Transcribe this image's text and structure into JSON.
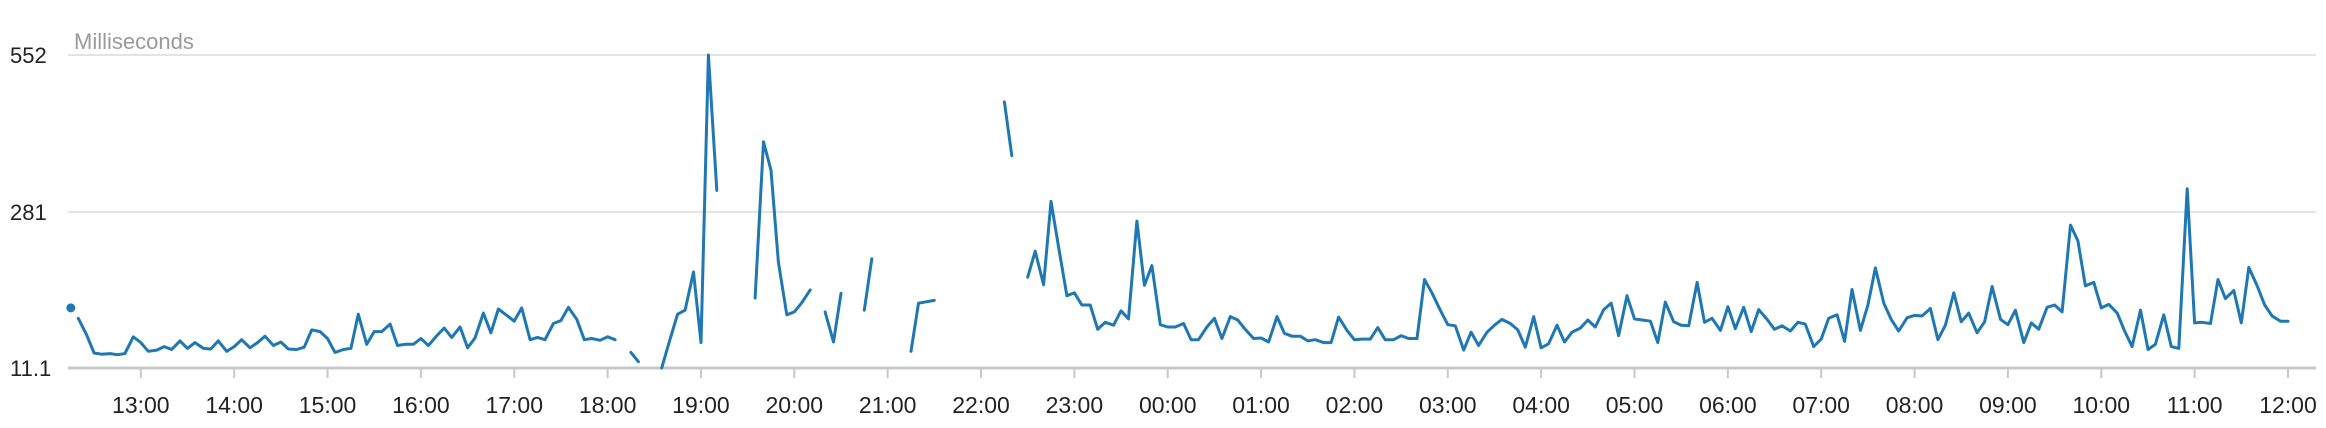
{
  "chart_data": {
    "type": "line",
    "unit_label": "Milliseconds",
    "ylim": [
      11.1,
      552
    ],
    "yticks": [
      "552",
      "281",
      "11.1"
    ],
    "xticks": [
      "13:00",
      "14:00",
      "15:00",
      "16:00",
      "17:00",
      "18:00",
      "19:00",
      "20:00",
      "21:00",
      "22:00",
      "23:00",
      "00:00",
      "01:00",
      "02:00",
      "03:00",
      "04:00",
      "05:00",
      "06:00",
      "07:00",
      "08:00",
      "09:00",
      "10:00",
      "11:00",
      "12:00"
    ],
    "grid": true,
    "color": "#1f77b4",
    "series": [
      {
        "values": [
          [
            12.25,
            115
          ],
          [
            12.25,
            null
          ],
          [
            12.33,
            97
          ],
          [
            12.42,
            68
          ],
          [
            12.5,
            37
          ],
          [
            12.58,
            35
          ],
          [
            12.67,
            36
          ],
          [
            12.75,
            34
          ],
          [
            12.83,
            36
          ],
          [
            12.92,
            65
          ],
          [
            13.0,
            55
          ],
          [
            13.08,
            40
          ],
          [
            13.17,
            42
          ],
          [
            13.25,
            48
          ],
          [
            13.33,
            43
          ],
          [
            13.42,
            58
          ],
          [
            13.5,
            45
          ],
          [
            13.58,
            55
          ],
          [
            13.67,
            45
          ],
          [
            13.75,
            44
          ],
          [
            13.83,
            58
          ],
          [
            13.92,
            40
          ],
          [
            14.0,
            48
          ],
          [
            14.08,
            60
          ],
          [
            14.17,
            46
          ],
          [
            14.25,
            55
          ],
          [
            14.33,
            66
          ],
          [
            14.42,
            50
          ],
          [
            14.5,
            56
          ],
          [
            14.58,
            44
          ],
          [
            14.67,
            43
          ],
          [
            14.75,
            47
          ],
          [
            14.83,
            77
          ],
          [
            14.92,
            74
          ],
          [
            15.0,
            62
          ],
          [
            15.08,
            38
          ],
          [
            15.17,
            43
          ],
          [
            15.25,
            45
          ],
          [
            15.33,
            104
          ],
          [
            15.42,
            52
          ],
          [
            15.5,
            74
          ],
          [
            15.58,
            74
          ],
          [
            15.67,
            87
          ],
          [
            15.75,
            50
          ],
          [
            15.83,
            52
          ],
          [
            15.92,
            52
          ],
          [
            16.0,
            62
          ],
          [
            16.08,
            50
          ],
          [
            16.17,
            67
          ],
          [
            16.25,
            80
          ],
          [
            16.33,
            64
          ],
          [
            16.42,
            82
          ],
          [
            16.5,
            46
          ],
          [
            16.58,
            63
          ],
          [
            16.67,
            106
          ],
          [
            16.75,
            72
          ],
          [
            16.83,
            113
          ],
          [
            16.92,
            102
          ],
          [
            17.0,
            92
          ],
          [
            17.08,
            115
          ],
          [
            17.17,
            60
          ],
          [
            17.25,
            64
          ],
          [
            17.33,
            60
          ],
          [
            17.42,
            88
          ],
          [
            17.5,
            93
          ],
          [
            17.58,
            116
          ],
          [
            17.67,
            95
          ],
          [
            17.75,
            60
          ],
          [
            17.83,
            62
          ],
          [
            17.92,
            59
          ],
          [
            18.0,
            65
          ],
          [
            18.08,
            60
          ],
          [
            18.08,
            null
          ],
          [
            18.25,
            38
          ],
          [
            18.33,
            22
          ],
          [
            18.33,
            null
          ],
          [
            18.58,
            11.1
          ],
          [
            18.67,
            61
          ],
          [
            18.75,
            104
          ],
          [
            18.83,
            111
          ],
          [
            18.92,
            177
          ],
          [
            19.0,
            55
          ],
          [
            19.08,
            552
          ],
          [
            19.17,
            318
          ],
          [
            19.17,
            null
          ],
          [
            19.58,
            132
          ],
          [
            19.67,
            402
          ],
          [
            19.75,
            353
          ],
          [
            19.83,
            194
          ],
          [
            19.92,
            103
          ],
          [
            20.0,
            108
          ],
          [
            20.08,
            124
          ],
          [
            20.17,
            146
          ],
          [
            20.17,
            null
          ],
          [
            20.33,
            108
          ],
          [
            20.42,
            56
          ],
          [
            20.5,
            140
          ],
          [
            20.5,
            null
          ],
          [
            20.75,
            111
          ],
          [
            20.83,
            200
          ],
          [
            20.83,
            null
          ],
          [
            21.25,
            40
          ],
          [
            21.33,
            123
          ],
          [
            21.5,
            128
          ],
          [
            21.5,
            null
          ],
          [
            22.25,
            471
          ],
          [
            22.33,
            378
          ],
          [
            22.33,
            null
          ],
          [
            22.5,
            168
          ],
          [
            22.58,
            213
          ],
          [
            22.67,
            155
          ],
          [
            22.75,
            299
          ],
          [
            22.83,
            221
          ],
          [
            22.92,
            136
          ],
          [
            23.0,
            141
          ],
          [
            23.08,
            120
          ],
          [
            23.17,
            120
          ],
          [
            23.25,
            78
          ],
          [
            23.33,
            90
          ],
          [
            23.42,
            85
          ],
          [
            23.5,
            110
          ],
          [
            23.58,
            96
          ],
          [
            23.67,
            265
          ],
          [
            23.75,
            154
          ],
          [
            23.83,
            188
          ],
          [
            23.92,
            86
          ],
          [
            24.0,
            82
          ],
          [
            24.08,
            82
          ],
          [
            24.17,
            88
          ],
          [
            24.25,
            60
          ],
          [
            24.33,
            60
          ],
          [
            24.42,
            82
          ],
          [
            24.5,
            97
          ],
          [
            24.58,
            62
          ],
          [
            24.67,
            100
          ],
          [
            24.75,
            94
          ],
          [
            24.83,
            78
          ],
          [
            24.92,
            62
          ],
          [
            25.0,
            63
          ],
          [
            25.08,
            56
          ],
          [
            25.17,
            100
          ],
          [
            25.25,
            71
          ],
          [
            25.33,
            66
          ],
          [
            25.42,
            66
          ],
          [
            25.5,
            58
          ],
          [
            25.58,
            60
          ],
          [
            25.67,
            55
          ],
          [
            25.75,
            55
          ],
          [
            25.83,
            99
          ],
          [
            25.92,
            76
          ],
          [
            26.0,
            60
          ],
          [
            26.08,
            61
          ],
          [
            26.17,
            61
          ],
          [
            26.25,
            81
          ],
          [
            26.33,
            60
          ],
          [
            26.42,
            60
          ],
          [
            26.5,
            67
          ],
          [
            26.58,
            62
          ],
          [
            26.67,
            62
          ],
          [
            26.75,
            164
          ],
          [
            26.83,
            141
          ],
          [
            26.92,
            111
          ],
          [
            27.0,
            86
          ],
          [
            27.08,
            84
          ],
          [
            27.17,
            42
          ],
          [
            27.25,
            73
          ],
          [
            27.33,
            50
          ],
          [
            27.42,
            73
          ],
          [
            27.5,
            85
          ],
          [
            27.58,
            95
          ],
          [
            27.67,
            88
          ],
          [
            27.75,
            77
          ],
          [
            27.83,
            47
          ],
          [
            27.92,
            100
          ],
          [
            28.0,
            46
          ],
          [
            28.08,
            53
          ],
          [
            28.17,
            85
          ],
          [
            28.25,
            56
          ],
          [
            28.33,
            73
          ],
          [
            28.42,
            80
          ],
          [
            28.5,
            94
          ],
          [
            28.58,
            82
          ],
          [
            28.67,
            112
          ],
          [
            28.75,
            123
          ],
          [
            28.83,
            67
          ],
          [
            28.92,
            136
          ],
          [
            29.0,
            96
          ],
          [
            29.08,
            94
          ],
          [
            29.17,
            92
          ],
          [
            29.25,
            55
          ],
          [
            29.33,
            125
          ],
          [
            29.42,
            91
          ],
          [
            29.5,
            85
          ],
          [
            29.58,
            84
          ],
          [
            29.67,
            159
          ],
          [
            29.75,
            90
          ],
          [
            29.83,
            97
          ],
          [
            29.92,
            76
          ],
          [
            30.0,
            117
          ],
          [
            30.08,
            79
          ],
          [
            30.17,
            116
          ],
          [
            30.25,
            74
          ],
          [
            30.33,
            112
          ],
          [
            30.42,
            95
          ],
          [
            30.5,
            78
          ],
          [
            30.58,
            84
          ],
          [
            30.67,
            75
          ],
          [
            30.75,
            90
          ],
          [
            30.83,
            87
          ],
          [
            30.92,
            48
          ],
          [
            31.0,
            61
          ],
          [
            31.08,
            97
          ],
          [
            31.17,
            103
          ],
          [
            31.25,
            57
          ],
          [
            31.33,
            147
          ],
          [
            31.42,
            76
          ],
          [
            31.5,
            120
          ],
          [
            31.58,
            184
          ],
          [
            31.67,
            123
          ],
          [
            31.75,
            95
          ],
          [
            31.83,
            75
          ],
          [
            31.92,
            98
          ],
          [
            32.0,
            102
          ],
          [
            32.08,
            101
          ],
          [
            32.17,
            114
          ],
          [
            32.25,
            60
          ],
          [
            32.33,
            85
          ],
          [
            32.42,
            141
          ],
          [
            32.5,
            91
          ],
          [
            32.58,
            106
          ],
          [
            32.67,
            72
          ],
          [
            32.75,
            91
          ],
          [
            32.83,
            152
          ],
          [
            32.92,
            95
          ],
          [
            33.0,
            86
          ],
          [
            33.08,
            111
          ],
          [
            33.17,
            55
          ],
          [
            33.25,
            89
          ],
          [
            33.33,
            78
          ],
          [
            33.42,
            116
          ],
          [
            33.5,
            120
          ],
          [
            33.58,
            108
          ],
          [
            33.67,
            258
          ],
          [
            33.75,
            231
          ],
          [
            33.83,
            153
          ],
          [
            33.92,
            159
          ],
          [
            34.0,
            115
          ],
          [
            34.08,
            121
          ],
          [
            34.17,
            106
          ],
          [
            34.25,
            75
          ],
          [
            34.33,
            48
          ],
          [
            34.42,
            111
          ],
          [
            34.5,
            43
          ],
          [
            34.58,
            52
          ],
          [
            34.67,
            103
          ],
          [
            34.75,
            48
          ],
          [
            34.83,
            45
          ],
          [
            34.92,
            321
          ],
          [
            35.0,
            89
          ],
          [
            35.08,
            90
          ],
          [
            35.17,
            88
          ],
          [
            35.25,
            164
          ],
          [
            35.33,
            131
          ],
          [
            35.42,
            145
          ],
          [
            35.5,
            89
          ],
          [
            35.58,
            185
          ],
          [
            35.67,
            153
          ],
          [
            35.75,
            120
          ],
          [
            35.83,
            101
          ],
          [
            35.92,
            92
          ],
          [
            36.0,
            92
          ]
        ]
      }
    ]
  }
}
